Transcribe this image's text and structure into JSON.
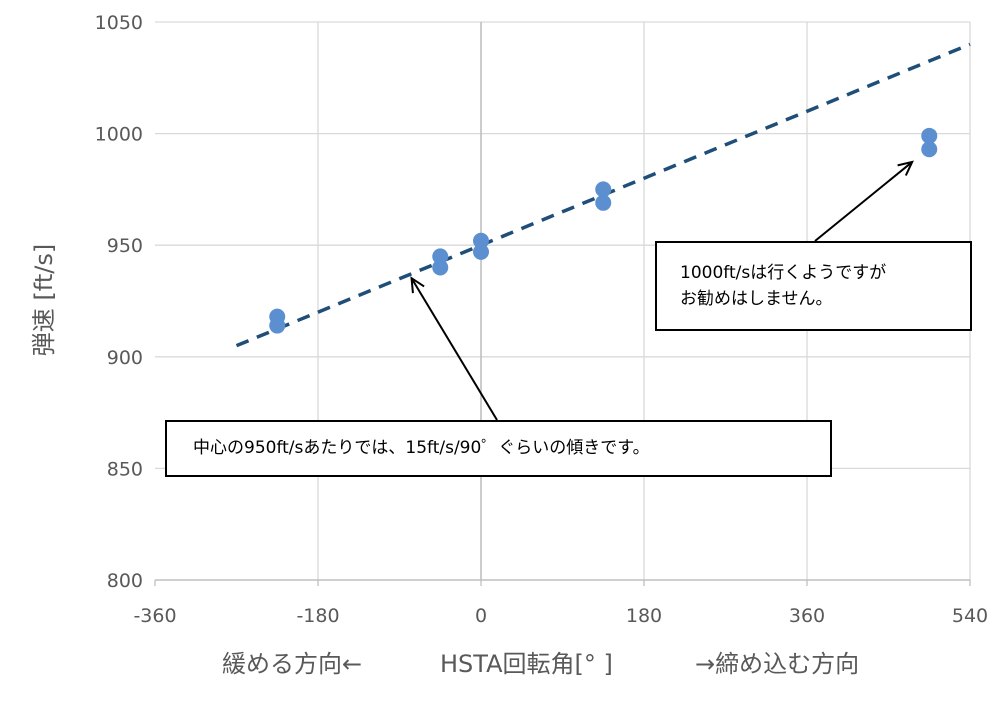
{
  "chart_data": {
    "type": "scatter",
    "xlabel": {
      "left": "緩める方向←",
      "center": "HSTA回転角[° ]",
      "right": "→締め込む方向"
    },
    "ylabel": "弾速 [ft/s]",
    "xlim": [
      -360,
      540
    ],
    "ylim": [
      800,
      1050
    ],
    "x_ticks": [
      "-360",
      "-180",
      "0",
      "180",
      "360",
      "540"
    ],
    "y_ticks": [
      "800",
      "850",
      "900",
      "950",
      "1000",
      "1050"
    ],
    "grid": true,
    "series": [
      {
        "marker_color": "#5b8fd0",
        "points": [
          {
            "x": -225,
            "y": 918
          },
          {
            "x": -225,
            "y": 914
          },
          {
            "x": -45,
            "y": 945
          },
          {
            "x": -45,
            "y": 940
          },
          {
            "x": 0,
            "y": 952
          },
          {
            "x": 0,
            "y": 947
          },
          {
            "x": 135,
            "y": 975
          },
          {
            "x": 135,
            "y": 969
          },
          {
            "x": 495,
            "y": 999
          },
          {
            "x": 495,
            "y": 993
          }
        ]
      }
    ],
    "trendline": {
      "style": "dashed",
      "color": "#1f4e79",
      "x_range": [
        -270,
        540
      ],
      "slope_per_90deg": 15,
      "intercept": 950
    },
    "annotations": [
      {
        "text": "中心の950ft/sあたりでは、15ft/s/90゜ぐらいの傾きです。",
        "arrow_to": {
          "x": -80,
          "y": 937
        }
      },
      {
        "lines": [
          "1000ft/sは行くようですが",
          "お勧めはしません。"
        ],
        "arrow_to": {
          "x": 485,
          "y": 990
        }
      }
    ]
  }
}
